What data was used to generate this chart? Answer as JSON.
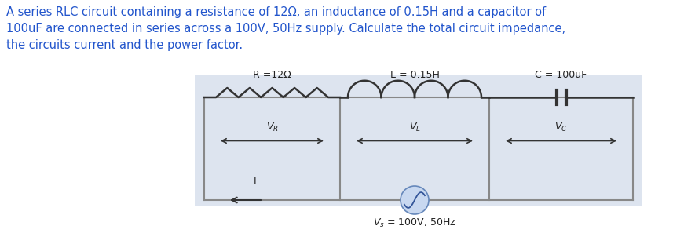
{
  "title_text": "A series RLC circuit containing a resistance of 12Ω, an inductance of 0.15H and a capacitor of\n100uF are connected in series across a 100V, 50Hz supply. Calculate the total circuit impedance,\nthe circuits current and the power factor.",
  "title_fontsize": 10.5,
  "text_color": "#2255cc",
  "label_R": "R =12Ω",
  "label_L": "L = 0.15H",
  "label_C": "C = 100uF",
  "label_Vs": "V_s = 100V, 50Hz",
  "bg_color": "#dde4ef",
  "box_color": "#888888",
  "wire_color": "#555555",
  "component_color": "#333333"
}
